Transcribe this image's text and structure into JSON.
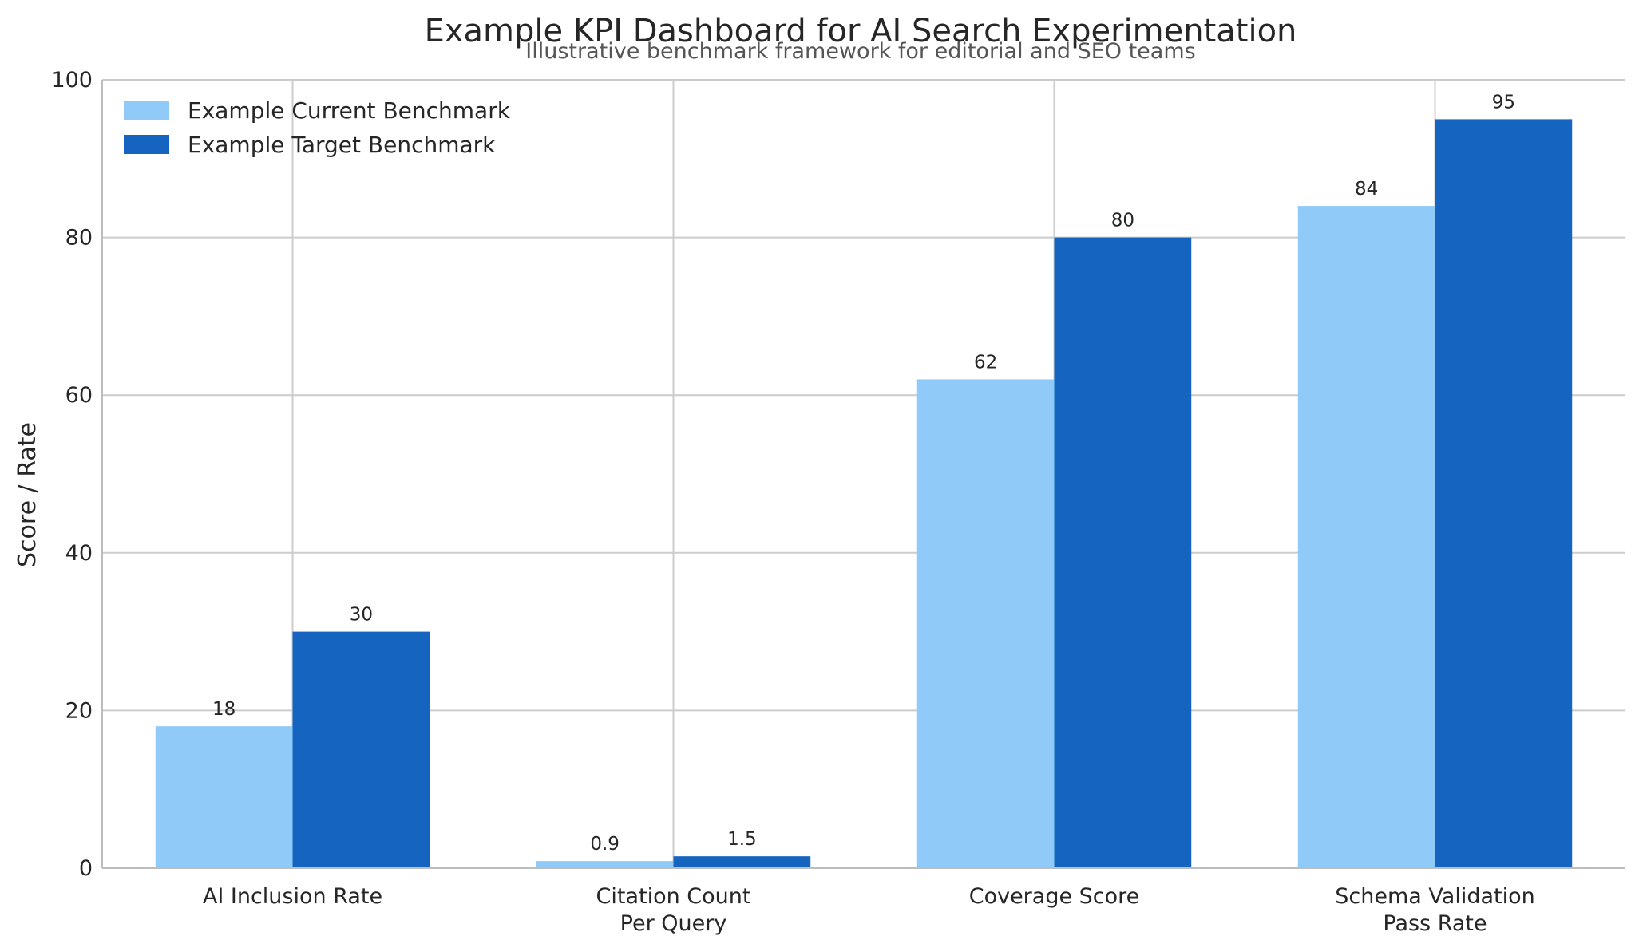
{
  "chart_data": {
    "type": "bar",
    "title": "Example KPI Dashboard for AI Search Experimentation",
    "subtitle": "Illustrative benchmark framework for editorial and SEO teams",
    "xlabel": "",
    "ylabel": "Score / Rate",
    "ylim": [
      0,
      100
    ],
    "yticks": [
      0,
      20,
      40,
      60,
      80,
      100
    ],
    "grid": true,
    "legend_position": "top-left",
    "categories": [
      [
        "AI Inclusion Rate"
      ],
      [
        "Citation Count",
        "Per Query"
      ],
      [
        "Coverage Score"
      ],
      [
        "Schema Validation",
        "Pass Rate"
      ]
    ],
    "series": [
      {
        "name": "Example Current Benchmark",
        "color": "#90CAF9",
        "values": [
          18,
          0.9,
          62,
          84
        ]
      },
      {
        "name": "Example Target Benchmark",
        "color": "#1565C0",
        "values": [
          30,
          1.5,
          80,
          95
        ]
      }
    ]
  }
}
